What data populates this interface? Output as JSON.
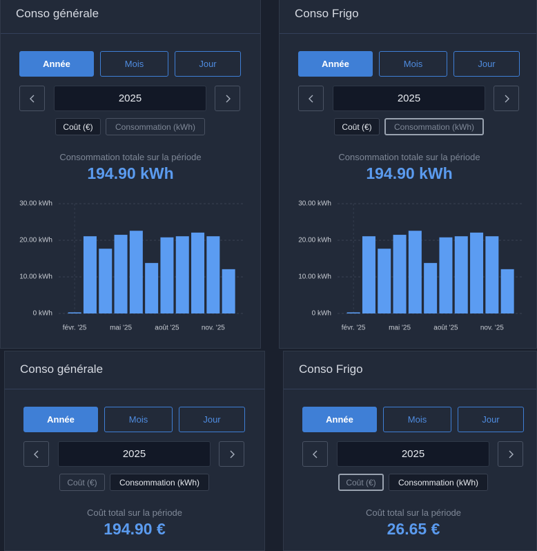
{
  "panels": [
    {
      "title": "Conso générale",
      "buttons": [
        "Année",
        "Mois",
        "Jour"
      ],
      "year": "2025",
      "toggles": [
        "Coût (€)",
        "Consommation (kWh)"
      ],
      "total_label": "Consommation totale sur la période",
      "total_value": "194.90 kWh"
    },
    {
      "title": "Conso Frigo",
      "buttons": [
        "Année",
        "Mois",
        "Jour"
      ],
      "year": "2025",
      "toggles": [
        "Coût (€)",
        "Consommation (kWh)"
      ],
      "total_label": "Consommation totale sur la période",
      "total_value": "194.90 kWh"
    },
    {
      "title": "Conso générale",
      "buttons": [
        "Année",
        "Mois",
        "Jour"
      ],
      "year": "2025",
      "toggles": [
        "Coût (€)",
        "Consommation (kWh)"
      ],
      "total_label": "Coût total sur la période",
      "total_value": "194.90 €"
    },
    {
      "title": "Conso Frigo",
      "buttons": [
        "Année",
        "Mois",
        "Jour"
      ],
      "year": "2025",
      "toggles": [
        "Coût (€)",
        "Consommation (kWh)"
      ],
      "total_label": "Coût total sur la période",
      "total_value": "26.65 €"
    }
  ],
  "chart_data": [
    {
      "type": "bar",
      "categories": [
        "févr. '25",
        null,
        null,
        "mai '25",
        null,
        null,
        "août '25",
        null,
        null,
        "nov. '25",
        null
      ],
      "values": [
        0.3,
        21.1,
        17.7,
        21.5,
        22.6,
        13.8,
        20.8,
        21.1,
        22.1,
        21.1,
        12.1
      ],
      "color": "#5b9cf2",
      "ylim": [
        0,
        30
      ],
      "yticks": [
        {
          "value": 0,
          "label": "0 kWh"
        },
        {
          "value": 10,
          "label": "10.00 kWh"
        },
        {
          "value": 20,
          "label": "20.00 kWh"
        },
        {
          "value": 30,
          "label": "30.00 kWh"
        }
      ],
      "grid": true
    },
    {
      "type": "bar",
      "categories": [
        "févr. '25",
        null,
        null,
        "mai '25",
        null,
        null,
        "août '25",
        null,
        null,
        "nov. '25",
        null
      ],
      "values": [
        0.3,
        21.1,
        17.7,
        21.5,
        22.6,
        13.8,
        20.8,
        21.1,
        22.1,
        21.1,
        12.1
      ],
      "color": "#5b9cf2",
      "ylim": [
        0,
        30
      ],
      "yticks": [
        {
          "value": 0,
          "label": "0 kWh"
        },
        {
          "value": 10,
          "label": "10.00 kWh"
        },
        {
          "value": 20,
          "label": "20.00 kWh"
        },
        {
          "value": 30,
          "label": "30.00 kWh"
        }
      ],
      "grid": true
    }
  ]
}
